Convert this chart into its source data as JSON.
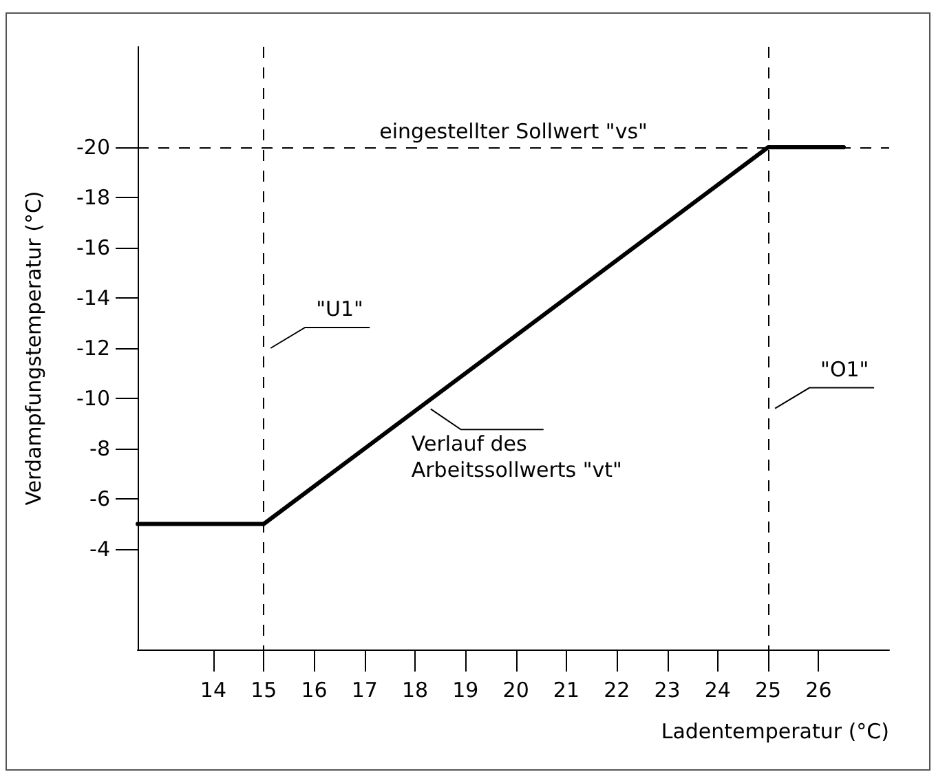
{
  "chart_data": {
    "type": "line",
    "xlabel": "Ladentemperatur (°C)",
    "ylabel": "Verdampfungstemperatur (°C)",
    "x": [
      12.5,
      15,
      25,
      26.5
    ],
    "series": [
      {
        "color": "#000000",
        "values": [
          -5,
          -5,
          -20,
          -20
        ]
      }
    ],
    "xlim": [
      12.5,
      27.4
    ],
    "xticks": [
      14,
      15,
      16,
      17,
      18,
      19,
      20,
      21,
      22,
      23,
      24,
      25,
      26
    ],
    "ylim": [
      0,
      -24
    ],
    "yticks": [
      -20,
      -18,
      -16,
      -14,
      -12,
      -10,
      -8,
      -6,
      -4
    ],
    "ref_lines": [
      {
        "axis": "y",
        "value": -20,
        "label": "eingestellter Sollwert \"vs\"",
        "line_style": "dashed"
      },
      {
        "axis": "x",
        "value": 15,
        "label": "\"U1\"",
        "line_style": "dashed"
      },
      {
        "axis": "x",
        "value": 25,
        "label": "\"O1\"",
        "line_style": "dashed"
      }
    ],
    "annotations": [
      {
        "text": "Verlauf des Arbeitssollwerts \"vt\"",
        "x": 18.2,
        "y": -9.8
      }
    ],
    "marker": "none",
    "line_style": "solid"
  }
}
